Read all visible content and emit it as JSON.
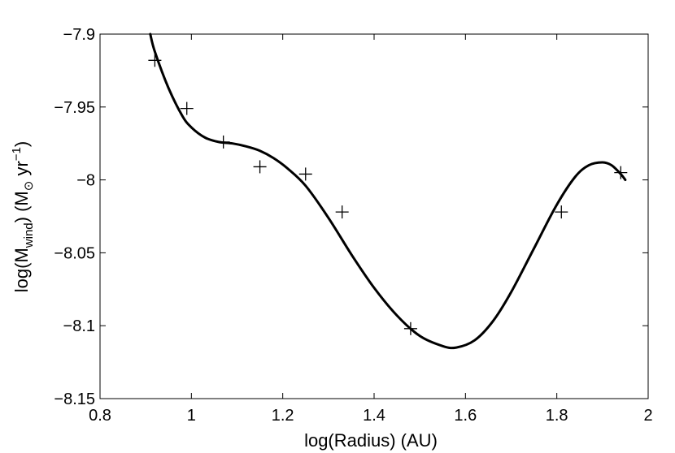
{
  "chart_data": {
    "type": "line",
    "xlabel": "log(Radius) (AU)",
    "ylabel": {
      "prefix": "log(M",
      "sub1": "wind",
      "mid": ") (M",
      "sub2": "⊙",
      "unit": " yr",
      "sup": "−1",
      "suffix": ")"
    },
    "xlim": [
      0.8,
      2.0
    ],
    "ylim": [
      -8.15,
      -7.9
    ],
    "xticks": [
      0.8,
      1.0,
      1.2,
      1.4,
      1.6,
      1.8,
      2.0
    ],
    "xtick_labels": [
      "0.8",
      "1",
      "1.2",
      "1.4",
      "1.6",
      "1.8",
      "2"
    ],
    "yticks": [
      -7.9,
      -7.95,
      -8.0,
      -8.05,
      -8.1,
      -8.15
    ],
    "ytick_labels": [
      "−7.9",
      "−7.95",
      "−8",
      "−8.05",
      "−8.1",
      "−8.15"
    ],
    "grid": false,
    "series": [
      {
        "kind": "fit-line",
        "x": [
          0.91,
          0.92,
          0.95,
          0.98,
          1.0,
          1.03,
          1.06,
          1.09,
          1.12,
          1.15,
          1.18,
          1.21,
          1.25,
          1.3,
          1.35,
          1.4,
          1.45,
          1.5,
          1.55,
          1.58,
          1.62,
          1.66,
          1.7,
          1.75,
          1.8,
          1.84,
          1.87,
          1.9,
          1.92,
          1.94,
          1.95
        ],
        "y": [
          -7.9,
          -7.912,
          -7.937,
          -7.956,
          -7.964,
          -7.971,
          -7.974,
          -7.975,
          -7.977,
          -7.98,
          -7.985,
          -7.992,
          -8.004,
          -8.026,
          -8.051,
          -8.074,
          -8.093,
          -8.107,
          -8.114,
          -8.115,
          -8.11,
          -8.097,
          -8.077,
          -8.047,
          -8.017,
          -7.998,
          -7.99,
          -7.988,
          -7.99,
          -7.996,
          -8.0
        ]
      },
      {
        "kind": "markers",
        "marker": "plus",
        "x": [
          0.92,
          0.99,
          1.07,
          1.15,
          1.25,
          1.33,
          1.48,
          1.81,
          1.94
        ],
        "y": [
          -7.918,
          -7.951,
          -7.974,
          -7.991,
          -7.996,
          -8.022,
          -8.102,
          -8.022,
          -7.995
        ]
      }
    ],
    "colors": {
      "line": "#000000",
      "marker": "#000000",
      "axes": "#000000",
      "background": "#ffffff"
    }
  }
}
